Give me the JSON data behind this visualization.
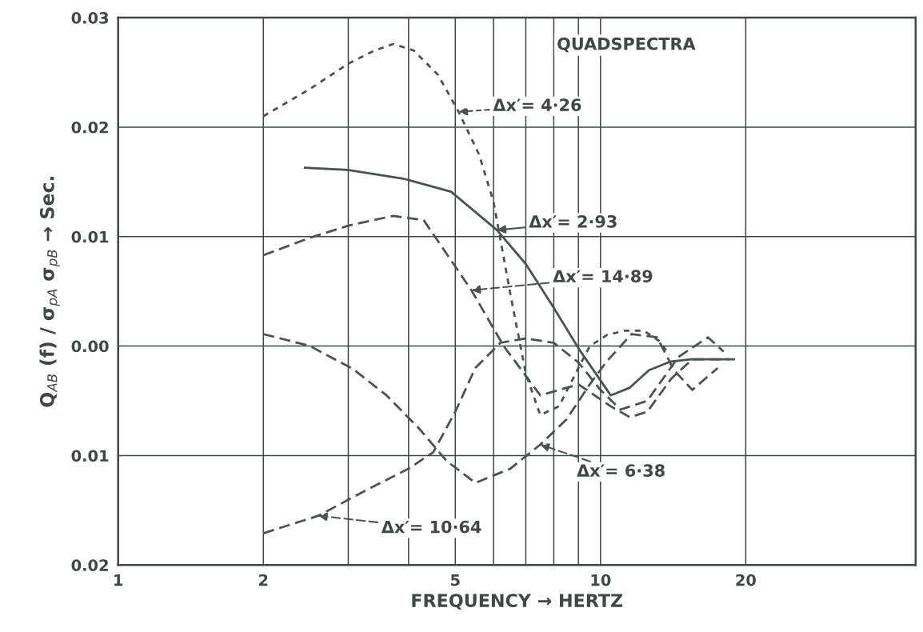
{
  "chart_data": {
    "type": "line",
    "title": "QUADSPECTRA",
    "xlabel": "FREQUENCY → HERTZ",
    "ylabel": "Q$_{AB}$ (f) / σ$_{pA}$ σ$_{pB}$ → Sec.",
    "log": "x",
    "xlim": [
      1,
      45
    ],
    "xticks": [
      1,
      2,
      {
        "value": 3,
        "label": null
      },
      {
        "value": 4,
        "label": null
      },
      5,
      {
        "value": 6,
        "label": null
      },
      {
        "value": 7,
        "label": null
      },
      {
        "value": 8,
        "label": null
      },
      {
        "value": 9,
        "label": null
      },
      10,
      20
    ],
    "ylim": [
      -0.02,
      0.03
    ],
    "yticks": [
      {
        "value": -0.02,
        "label": "0.02"
      },
      {
        "value": -0.01,
        "label": "0.01"
      },
      {
        "value": 0,
        "label": "0.00"
      },
      0.01,
      0.02,
      0.03
    ],
    "grid": true,
    "legend": "center",
    "marker": "none",
    "series": [
      {
        "name": "Δx′= 4·26",
        "color": "#4a5252",
        "line_style": "dotted",
        "x": [
          2,
          2.5,
          3,
          3.4,
          3.72,
          4.1,
          4.6,
          5.08,
          5.6,
          6.0,
          6.5,
          7.0,
          7.5,
          8.2,
          9.0,
          9.5,
          10.3,
          11.2,
          12.3,
          13.2,
          13.9
        ],
        "values": [
          0.021,
          0.0235,
          0.0258,
          0.027,
          0.0276,
          0.027,
          0.0248,
          0.0214,
          0.0175,
          0.0132,
          0.0048,
          -0.0025,
          -0.0063,
          -0.0055,
          -0.002,
          0.0,
          0.001,
          0.0014,
          0.0014,
          0.0005,
          -0.0008
        ]
      },
      {
        "name": "Δx′= 2·93",
        "color": "#4a5252",
        "line_style": "solid",
        "x": [
          2.44,
          2.99,
          3.9,
          4.9,
          6.1,
          7.0,
          8.0,
          9.0,
          10.5,
          11.5,
          12.6,
          14.0,
          15.4,
          18.9
        ],
        "values": [
          0.0163,
          0.0161,
          0.0153,
          0.0141,
          0.0106,
          0.0075,
          0.0035,
          -0.0002,
          -0.0045,
          -0.0038,
          -0.0022,
          -0.0014,
          -0.0012,
          -0.0012
        ]
      },
      {
        "name": "Δx′= 14·89",
        "color": "#4a5252",
        "line_style": "dashed",
        "x": [
          2,
          2.5,
          3,
          3.72,
          4.3,
          5.4,
          6.3,
          7.5,
          9,
          10.5,
          11.5,
          12.5,
          14,
          15.5,
          18.5
        ],
        "values": [
          0.0083,
          0.0099,
          0.011,
          0.0119,
          0.0115,
          0.0051,
          0.0,
          -0.0045,
          -0.0035,
          -0.0055,
          -0.0065,
          -0.006,
          -0.003,
          -0.0012,
          -0.0012
        ]
      },
      {
        "name": "Δx′= 6·38",
        "color": "#4a5252",
        "line_style": "dashed",
        "x": [
          2,
          2.5,
          3.07,
          3.6,
          4.2,
          4.8,
          5.5,
          6.5,
          7.5,
          8.5,
          9.5,
          10.3,
          11.6,
          13.1,
          14.2,
          15.5,
          17.5
        ],
        "values": [
          0.0011,
          0.0,
          -0.0021,
          -0.0045,
          -0.0075,
          -0.0105,
          -0.0125,
          -0.0112,
          -0.009,
          -0.0067,
          -0.0035,
          -0.0014,
          0.0011,
          0.0008,
          -0.0022,
          -0.004,
          -0.002
        ]
      },
      {
        "name": "Δx′= 10·64",
        "color": "#4a5252",
        "line_style": "dashed",
        "x": [
          2,
          2.6,
          3.29,
          4.0,
          4.5,
          5.0,
          5.5,
          6.2,
          7.0,
          8.0,
          9.0,
          10.0,
          11.0,
          12.5,
          14.5,
          16.7,
          18.0
        ],
        "values": [
          -0.0171,
          -0.0155,
          -0.0131,
          -0.0112,
          -0.0097,
          -0.006,
          -0.002,
          0.0003,
          0.0007,
          0.0003,
          -0.0015,
          -0.004,
          -0.0058,
          -0.005,
          -0.001,
          0.0008,
          -0.0005
        ]
      }
    ]
  }
}
